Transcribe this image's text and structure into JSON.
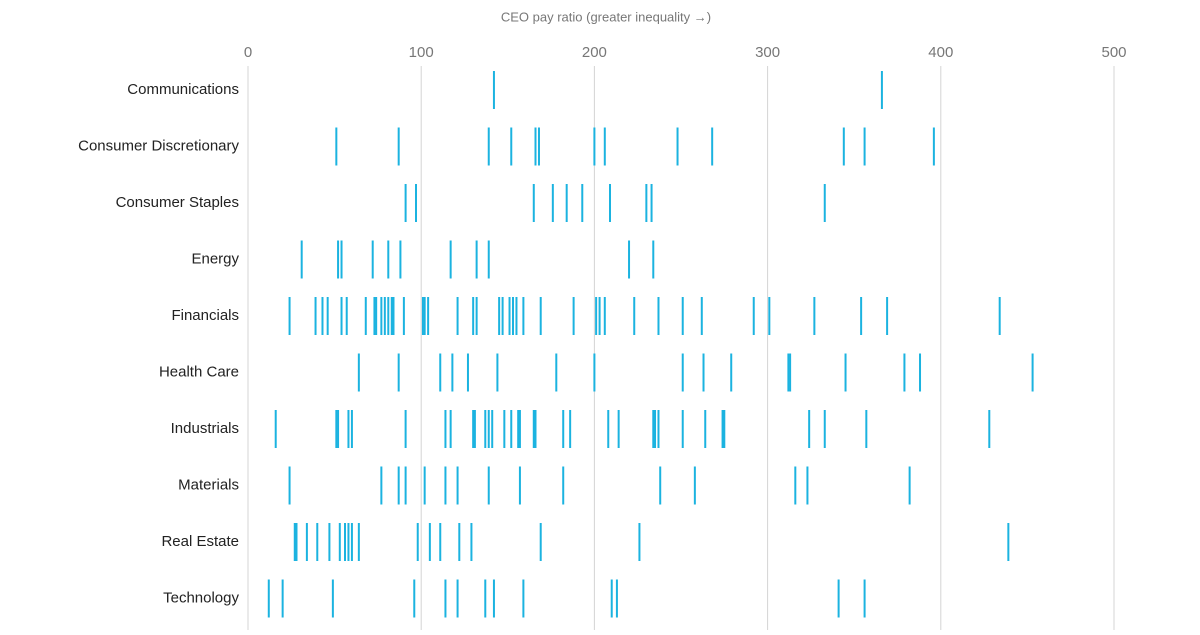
{
  "chart_data": {
    "type": "strip",
    "x_label": "CEO pay ratio (greater inequality →)",
    "xlim": [
      0,
      500
    ],
    "xticks": [
      0,
      100,
      200,
      300,
      400,
      500
    ],
    "grid": true,
    "color": "#1bb3e0",
    "categories": [
      "Communications",
      "Consumer Discretionary",
      "Consumer Staples",
      "Energy",
      "Financials",
      "Health Care",
      "Industrials",
      "Materials",
      "Real Estate",
      "Technology"
    ],
    "values": [
      [
        142,
        366
      ],
      [
        51,
        87,
        139,
        152,
        166,
        168,
        200,
        206,
        248,
        268,
        344,
        356,
        396
      ],
      [
        91,
        97,
        165,
        176,
        184,
        193,
        209,
        230,
        233,
        333
      ],
      [
        31,
        52,
        54,
        72,
        81,
        88,
        117,
        132,
        139,
        220,
        234
      ],
      [
        24,
        39,
        43,
        46,
        54,
        57,
        68,
        73,
        74,
        77,
        79,
        81,
        83,
        84,
        90,
        101,
        102,
        104,
        121,
        130,
        132,
        145,
        147,
        151,
        153,
        155,
        159,
        169,
        188,
        201,
        203,
        206,
        223,
        237,
        251,
        262,
        292,
        301,
        327,
        354,
        369,
        434
      ],
      [
        64,
        87,
        111,
        118,
        127,
        144,
        178,
        200,
        251,
        263,
        279,
        312,
        313,
        345,
        379,
        388,
        453
      ],
      [
        16,
        51,
        52,
        58,
        60,
        91,
        114,
        117,
        130,
        131,
        137,
        139,
        141,
        148,
        152,
        156,
        157,
        165,
        166,
        182,
        186,
        208,
        214,
        234,
        235,
        237,
        251,
        264,
        274,
        275,
        324,
        333,
        357,
        428
      ],
      [
        24,
        77,
        87,
        91,
        102,
        114,
        121,
        139,
        157,
        182,
        238,
        258,
        316,
        323,
        382
      ],
      [
        27,
        28,
        34,
        40,
        47,
        53,
        56,
        58,
        60,
        64,
        98,
        105,
        111,
        122,
        129,
        169,
        226,
        439
      ],
      [
        12,
        20,
        49,
        96,
        114,
        121,
        137,
        142,
        159,
        210,
        213,
        341,
        356
      ]
    ]
  }
}
